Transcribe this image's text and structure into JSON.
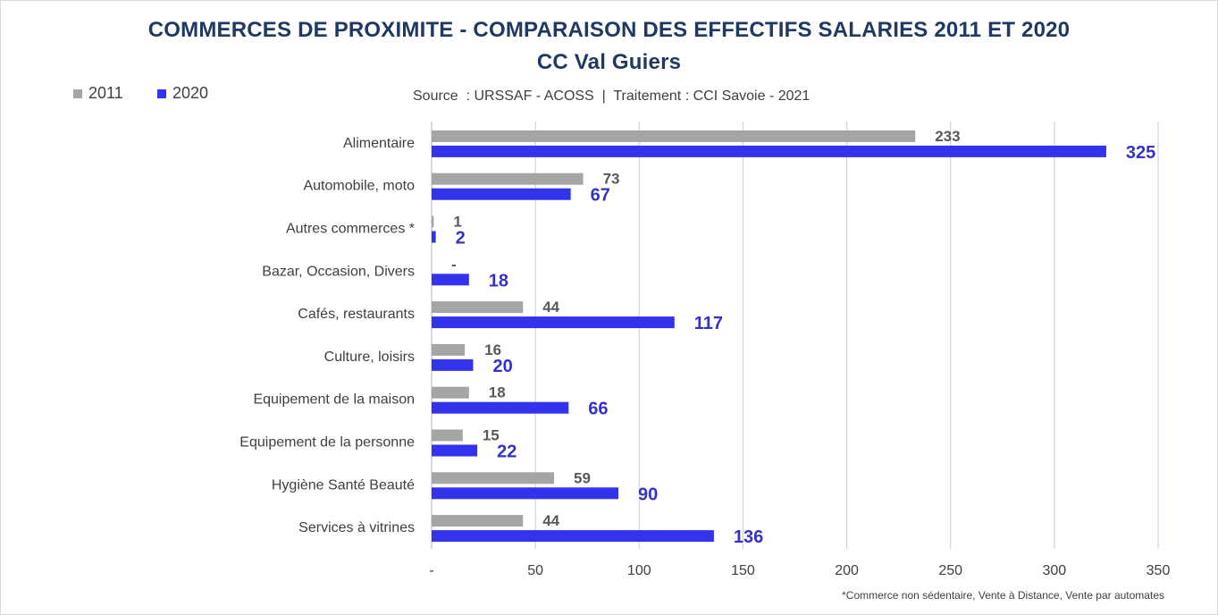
{
  "chart_data": {
    "type": "bar",
    "orientation": "horizontal",
    "title": "COMMERCES DE PROXIMITE - COMPARAISON DES EFFECTIFS SALARIES 2011 ET 2020",
    "subtitle": "CC Val Guiers",
    "source": "Source  : URSSAF - ACOSS  |  Traitement : CCI Savoie - 2021",
    "footnote": "*Commerce non sédentaire, Vente à Distance, Vente par automates",
    "categories": [
      "Alimentaire",
      "Automobile, moto",
      "Autres commerces *",
      "Bazar, Occasion, Divers",
      "Cafés, restaurants",
      "Culture, loisirs",
      "Equipement de la maison",
      "Equipement de la personne",
      "Hygiène Santé Beauté",
      "Services à vitrines"
    ],
    "series": [
      {
        "name": "2011",
        "color": "#a5a5a5",
        "values": [
          233,
          73,
          1,
          0,
          44,
          16,
          18,
          15,
          59,
          44
        ],
        "labels": [
          "233",
          "73",
          "1",
          "-",
          "44",
          "16",
          "18",
          "15",
          "59",
          "44"
        ]
      },
      {
        "name": "2020",
        "color": "#3333ee",
        "label_color": "#3333cc",
        "values": [
          325,
          67,
          2,
          18,
          117,
          20,
          66,
          22,
          90,
          136
        ],
        "labels": [
          "325",
          "67",
          "2",
          "18",
          "117",
          "20",
          "66",
          "22",
          "90",
          "136"
        ]
      }
    ],
    "xlim": [
      0,
      350
    ],
    "xticks": [
      0,
      50,
      100,
      150,
      200,
      250,
      300,
      350
    ],
    "xtick_labels": [
      "-",
      "50",
      "100",
      "150",
      "200",
      "250",
      "300",
      "350"
    ],
    "grid": "vertical",
    "legend": "top-left",
    "xlabel": "",
    "ylabel": ""
  }
}
